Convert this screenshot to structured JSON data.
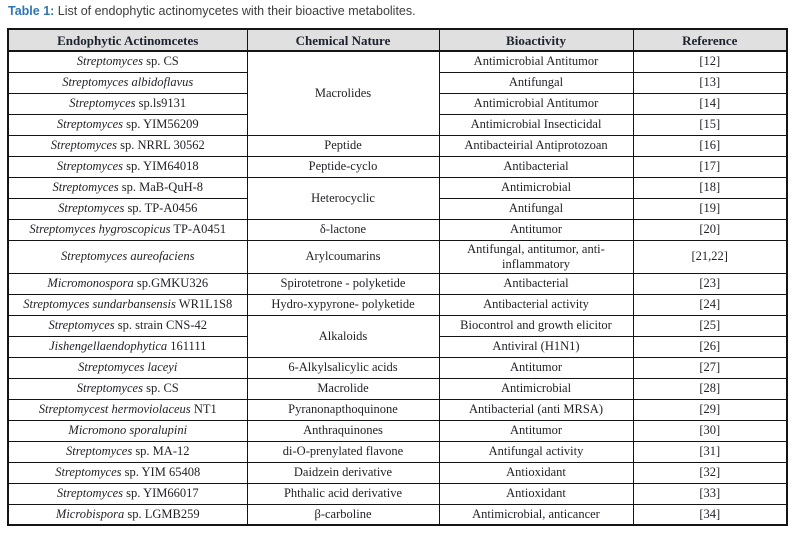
{
  "title": {
    "label": "Table 1:",
    "text": " List of endophytic actinomycetes with their bioactive metabolites."
  },
  "colors": {
    "title_accent": "#2e75b6",
    "header_background": "#e0e0e0",
    "border": "#141414"
  },
  "table": {
    "headers": [
      "Endophytic Actinomcetes",
      "Chemical Nature",
      "Bioactivity",
      "Reference"
    ],
    "rows": [
      {
        "organism_italic": "Streptomyces",
        "organism_rest": " sp. CS",
        "chemical": "Macrolides",
        "chemical_rowspan": 4,
        "bioactivity": "Antimicrobial Antitumor",
        "reference": "[12]"
      },
      {
        "organism_italic": "Streptomyces albidoflavus",
        "organism_rest": "",
        "bioactivity": "Antifungal",
        "reference": "[13]"
      },
      {
        "organism_italic": "Streptomyces",
        "organism_rest": " sp.ls9131",
        "bioactivity": "Antimicrobial Antitumor",
        "reference": "[14]"
      },
      {
        "organism_italic": "Streptomyces",
        "organism_rest": " sp. YIM56209",
        "bioactivity": "Antimicrobial Insecticidal",
        "reference": "[15]"
      },
      {
        "organism_italic": "Streptomyces",
        "organism_rest": " sp. NRRL 30562",
        "chemical": "Peptide",
        "chemical_rowspan": 1,
        "bioactivity": "Antibacteirial Antiprotozoan",
        "reference": "[16]"
      },
      {
        "organism_italic": "Streptomyces",
        "organism_rest": " sp. YIM64018",
        "chemical": "Peptide-cyclo",
        "chemical_rowspan": 1,
        "bioactivity": "Antibacterial",
        "reference": "[17]"
      },
      {
        "organism_italic": "Streptomyces",
        "organism_rest": " sp. MaB-QuH-8",
        "chemical": "Heterocyclic",
        "chemical_rowspan": 2,
        "bioactivity": "Antimicrobial",
        "reference": "[18]"
      },
      {
        "organism_italic": "Streptomyces",
        "organism_rest": " sp. TP-A0456",
        "bioactivity": "Antifungal",
        "reference": "[19]"
      },
      {
        "organism_italic": "Streptomyces hygroscopicus",
        "organism_rest": " TP-A0451",
        "chemical": "δ-lactone",
        "chemical_rowspan": 1,
        "bioactivity": "Antitumor",
        "reference": "[20]"
      },
      {
        "organism_italic": "Streptomyces aureofaciens",
        "organism_rest": "",
        "chemical": "Arylcoumarins",
        "chemical_rowspan": 1,
        "bioactivity": "Antifungal, antitumor, anti-inflammatory",
        "reference": "[21,22]"
      },
      {
        "organism_italic": "Micromonospora",
        "organism_rest": " sp.GMKU326",
        "chemical": "Spirotetrone - polyketide",
        "chemical_rowspan": 1,
        "bioactivity": "Antibacterial",
        "reference": "[23]"
      },
      {
        "organism_italic": "Streptomyces sundarbansensis",
        "organism_rest": " WR1L1S8",
        "chemical": "Hydro-xypyrone- polyketide",
        "chemical_rowspan": 1,
        "bioactivity": "Antibacterial activity",
        "reference": "[24]"
      },
      {
        "organism_italic": "Streptomyces",
        "organism_rest": " sp. strain CNS-42",
        "chemical": "Alkaloids",
        "chemical_rowspan": 2,
        "bioactivity": "Biocontrol and growth elicitor",
        "reference": "[25]"
      },
      {
        "organism_italic": "Jishengellaendophytica",
        "organism_rest": " 161111",
        "bioactivity": "Antiviral (H1N1)",
        "reference": "[26]"
      },
      {
        "organism_italic": "Streptomyces laceyi",
        "organism_rest": "",
        "chemical": "6-Alkylsalicylic acids",
        "chemical_rowspan": 1,
        "bioactivity": "Antitumor",
        "reference": "[27]"
      },
      {
        "organism_italic": "Streptomyces",
        "organism_rest": " sp. CS",
        "chemical": "Macrolide",
        "chemical_rowspan": 1,
        "bioactivity": "Antimicrobial",
        "reference": "[28]"
      },
      {
        "organism_italic": "Streptomycest hermoviolaceus",
        "organism_rest": " NT1",
        "chemical": "Pyranonapthoquinone",
        "chemical_rowspan": 1,
        "bioactivity": "Antibacterial (anti MRSA)",
        "reference": "[29]"
      },
      {
        "organism_italic": "Micromono sporalupini",
        "organism_rest": "",
        "chemical": "Anthraquinones",
        "chemical_rowspan": 1,
        "bioactivity": "Antitumor",
        "reference": "[30]"
      },
      {
        "organism_italic": "Streptomyces",
        "organism_rest": " sp. MA-12",
        "chemical": "di-O-prenylated flavone",
        "chemical_rowspan": 1,
        "bioactivity": "Antifungal activity",
        "reference": "[31]"
      },
      {
        "organism_italic": "Streptomyces",
        "organism_rest": " sp. YIM 65408",
        "chemical": "Daidzein derivative",
        "chemical_rowspan": 1,
        "bioactivity": "Antioxidant",
        "reference": "[32]"
      },
      {
        "organism_italic": "Streptomyces",
        "organism_rest": " sp. YIM66017",
        "chemical": "Phthalic acid derivative",
        "chemical_rowspan": 1,
        "bioactivity": "Antioxidant",
        "reference": "[33]"
      },
      {
        "organism_italic": "Microbispora",
        "organism_rest": " sp. LGMB259",
        "chemical": "β-carboline",
        "chemical_rowspan": 1,
        "bioactivity": "Antimicrobial, anticancer",
        "reference": "[34]"
      }
    ]
  }
}
